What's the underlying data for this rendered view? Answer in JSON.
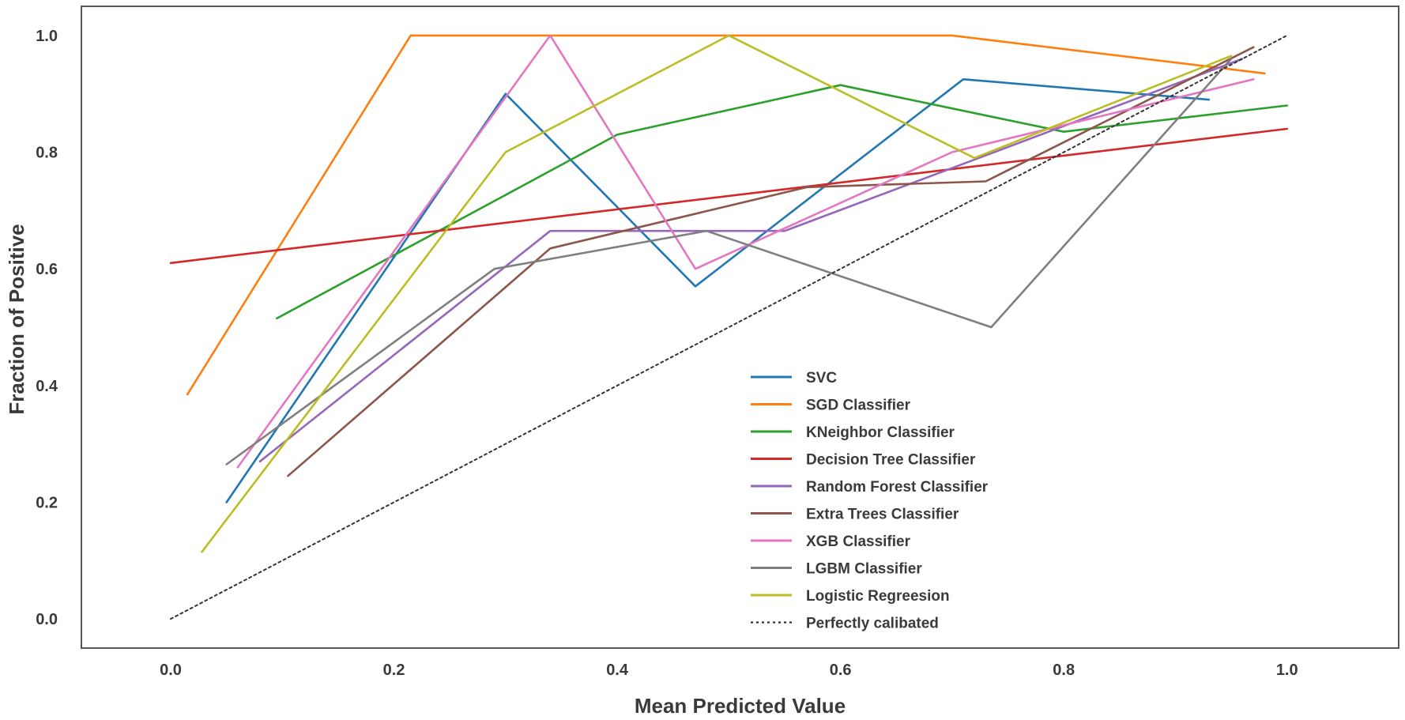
{
  "chart_data": {
    "type": "line",
    "title": "",
    "xlabel": "Mean Predicted Value",
    "ylabel": "Fraction of Positive",
    "xlim": [
      -0.08,
      1.1
    ],
    "ylim": [
      -0.05,
      1.05
    ],
    "x_ticks": [
      "0.0",
      "0.2",
      "0.4",
      "0.6",
      "0.8",
      "1.0"
    ],
    "y_ticks": [
      "0.0",
      "0.2",
      "0.4",
      "0.6",
      "0.8",
      "1.0"
    ],
    "grid": false,
    "legend_position": "lower-center",
    "series": [
      {
        "name": "SVC",
        "color": "#1f77b4",
        "x": [
          0.05,
          0.3,
          0.47,
          0.71,
          0.93
        ],
        "y": [
          0.2,
          0.9,
          0.57,
          0.925,
          0.89
        ]
      },
      {
        "name": "SGD Classifier",
        "color": "#ff7f0e",
        "x": [
          0.015,
          0.215,
          0.7,
          0.98
        ],
        "y": [
          0.385,
          1.0,
          1.0,
          0.935
        ]
      },
      {
        "name": "KNeighbor Classifier",
        "color": "#2ca02c",
        "x": [
          0.095,
          0.4,
          0.6,
          0.8,
          1.0
        ],
        "y": [
          0.515,
          0.83,
          0.915,
          0.835,
          0.88
        ]
      },
      {
        "name": "Decision Tree Classifier",
        "color": "#d62728",
        "x": [
          0.0,
          1.0
        ],
        "y": [
          0.61,
          0.84
        ]
      },
      {
        "name": "Random Forest Classifier",
        "color": "#9467bd",
        "x": [
          0.08,
          0.34,
          0.55,
          0.71,
          0.96
        ],
        "y": [
          0.27,
          0.665,
          0.665,
          0.78,
          0.96
        ]
      },
      {
        "name": "Extra Trees Classifier",
        "color": "#8c564b",
        "x": [
          0.105,
          0.34,
          0.57,
          0.73,
          0.97
        ],
        "y": [
          0.245,
          0.635,
          0.74,
          0.75,
          0.98
        ]
      },
      {
        "name": "XGB Classifier",
        "color": "#e377c2",
        "x": [
          0.06,
          0.34,
          0.47,
          0.7,
          0.97
        ],
        "y": [
          0.26,
          1.0,
          0.6,
          0.8,
          0.925
        ]
      },
      {
        "name": "LGBM Classifier",
        "color": "#7f7f7f",
        "x": [
          0.05,
          0.29,
          0.48,
          0.735,
          0.95
        ],
        "y": [
          0.265,
          0.6,
          0.665,
          0.5,
          0.96
        ]
      },
      {
        "name": "Logistic Regreesion",
        "color": "#bcbd22",
        "x": [
          0.028,
          0.3,
          0.5,
          0.72,
          0.95
        ],
        "y": [
          0.115,
          0.8,
          1.0,
          0.79,
          0.965
        ]
      },
      {
        "name": "Perfectly calibated",
        "color": "#333333",
        "dashed": true,
        "x": [
          0.0,
          1.0
        ],
        "y": [
          0.0,
          1.0
        ]
      }
    ]
  }
}
